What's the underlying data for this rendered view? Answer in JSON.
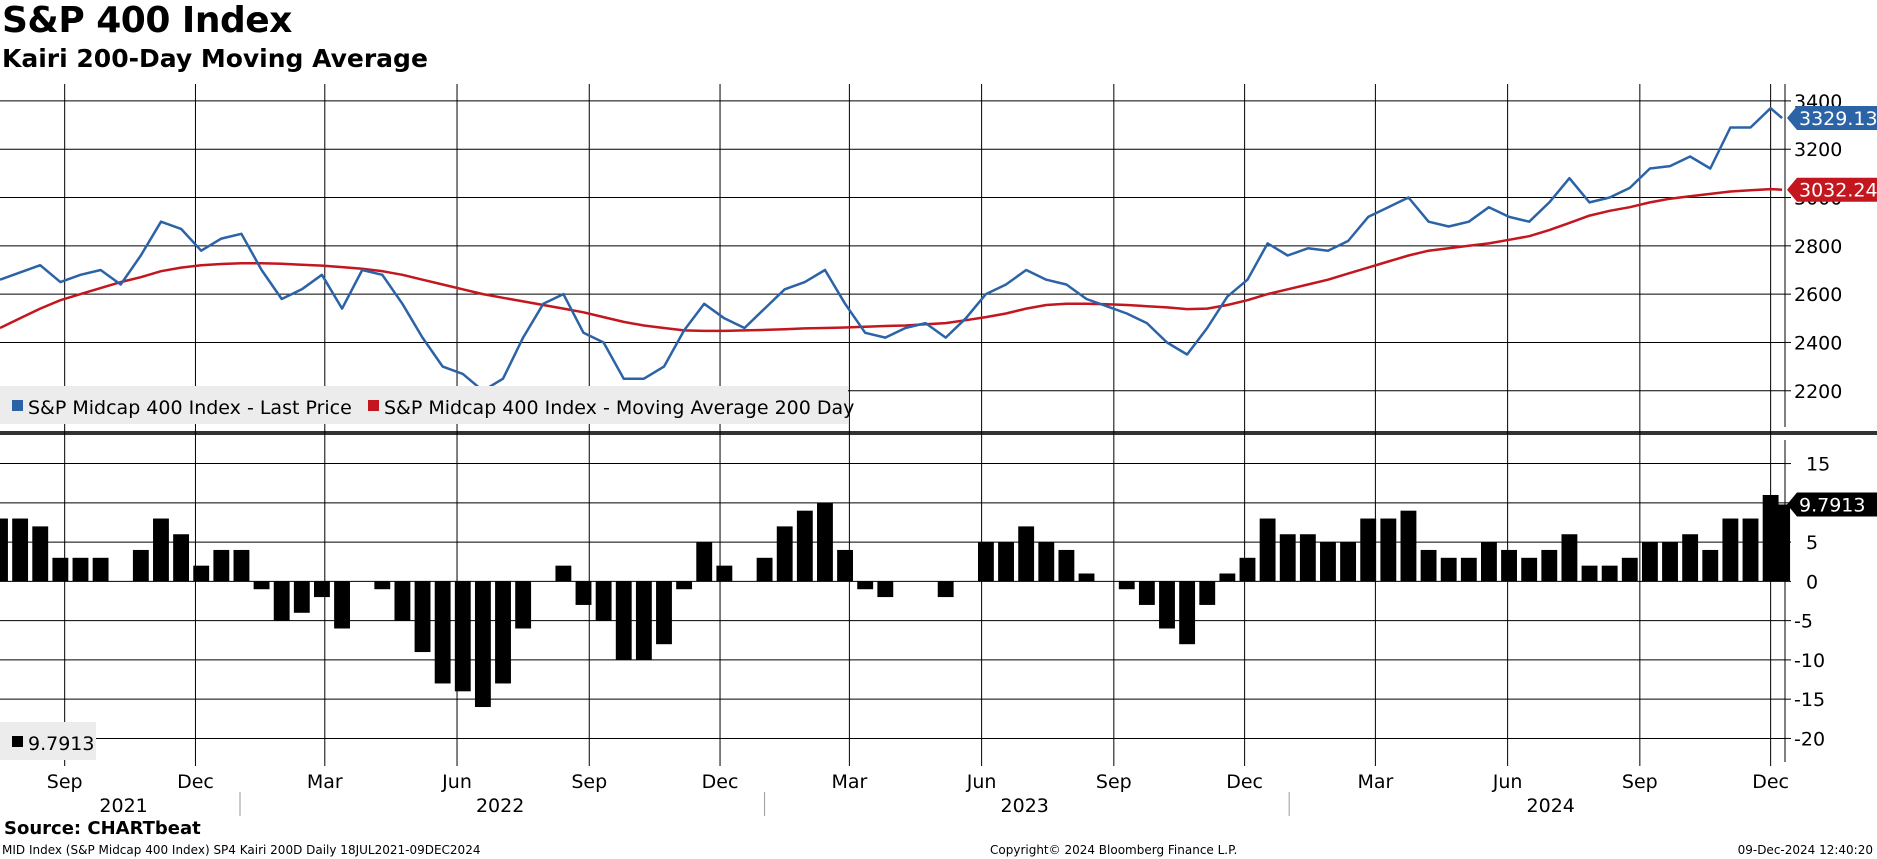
{
  "header": {
    "title": "S&P 400 Index",
    "subtitle": "Kairi 200-Day Moving Average"
  },
  "footer": {
    "source": "Source: CHARTbeat",
    "left_note": "MID Index (S&P Midcap 400 Index) SP4 Kairi 200D  Daily 18JUL2021-09DEC2024",
    "copyright": "Copyright© 2024 Bloomberg Finance L.P.",
    "timestamp": "09-Dec-2024 12:40:20"
  },
  "colors": {
    "price": "#2b63a6",
    "ma": "#c3161e",
    "kairi": "#000000",
    "grid": "#000000"
  },
  "chart_data": [
    {
      "type": "line",
      "panel": "upper",
      "ylim": [
        2050,
        3470
      ],
      "yticks": [
        2200,
        2400,
        2600,
        2800,
        3000,
        3200,
        3400
      ],
      "legend_position": "bottom-left",
      "legend": [
        "S&P Midcap 400 Index - Last Price",
        "S&P Midcap 400 Index - Moving Average 200 Day"
      ],
      "last_labels": {
        "price": "3329.13",
        "ma": "3032.24"
      },
      "x": [
        "2021-07-18",
        "2021-08-01",
        "2021-08-15",
        "2021-08-29",
        "2021-09-12",
        "2021-09-26",
        "2021-10-10",
        "2021-10-24",
        "2021-11-07",
        "2021-11-21",
        "2021-12-05",
        "2021-12-19",
        "2022-01-02",
        "2022-01-16",
        "2022-01-30",
        "2022-02-13",
        "2022-02-27",
        "2022-03-13",
        "2022-03-27",
        "2022-04-10",
        "2022-04-24",
        "2022-05-08",
        "2022-05-22",
        "2022-06-05",
        "2022-06-19",
        "2022-07-03",
        "2022-07-17",
        "2022-07-31",
        "2022-08-14",
        "2022-08-28",
        "2022-09-11",
        "2022-09-25",
        "2022-10-09",
        "2022-10-23",
        "2022-11-06",
        "2022-11-20",
        "2022-12-04",
        "2022-12-18",
        "2023-01-01",
        "2023-01-15",
        "2023-01-29",
        "2023-02-12",
        "2023-02-26",
        "2023-03-12",
        "2023-03-26",
        "2023-04-09",
        "2023-04-23",
        "2023-05-07",
        "2023-05-21",
        "2023-06-04",
        "2023-06-18",
        "2023-07-02",
        "2023-07-16",
        "2023-07-30",
        "2023-08-13",
        "2023-08-27",
        "2023-09-10",
        "2023-09-24",
        "2023-10-08",
        "2023-10-22",
        "2023-11-05",
        "2023-11-19",
        "2023-12-03",
        "2023-12-17",
        "2023-12-31",
        "2024-01-14",
        "2024-01-28",
        "2024-02-11",
        "2024-02-25",
        "2024-03-10",
        "2024-03-24",
        "2024-04-07",
        "2024-04-21",
        "2024-05-05",
        "2024-05-19",
        "2024-06-02",
        "2024-06-16",
        "2024-06-30",
        "2024-07-14",
        "2024-07-28",
        "2024-08-11",
        "2024-08-25",
        "2024-09-08",
        "2024-09-22",
        "2024-10-06",
        "2024-10-20",
        "2024-11-03",
        "2024-11-17",
        "2024-12-01",
        "2024-12-09"
      ],
      "series": [
        {
          "name": "S&P Midcap 400 Index - Last Price",
          "values": [
            2660,
            2690,
            2720,
            2650,
            2680,
            2700,
            2640,
            2760,
            2900,
            2870,
            2780,
            2830,
            2850,
            2700,
            2580,
            2620,
            2680,
            2540,
            2700,
            2680,
            2560,
            2420,
            2300,
            2270,
            2200,
            2250,
            2420,
            2560,
            2600,
            2440,
            2400,
            2250,
            2250,
            2300,
            2450,
            2560,
            2500,
            2460,
            2540,
            2620,
            2650,
            2700,
            2560,
            2440,
            2420,
            2460,
            2480,
            2420,
            2500,
            2600,
            2640,
            2700,
            2660,
            2640,
            2580,
            2550,
            2520,
            2480,
            2400,
            2350,
            2460,
            2590,
            2660,
            2810,
            2760,
            2790,
            2780,
            2820,
            2920,
            2960,
            3000,
            2900,
            2880,
            2900,
            2960,
            2920,
            2900,
            2980,
            3080,
            2980,
            3000,
            3040,
            3120,
            3130,
            3170,
            3120,
            3290,
            3290,
            3370,
            3329
          ]
        },
        {
          "name": "S&P Midcap 400 Index - Moving Average 200 Day",
          "values": [
            2460,
            2500,
            2540,
            2575,
            2600,
            2625,
            2650,
            2670,
            2695,
            2710,
            2720,
            2725,
            2728,
            2728,
            2726,
            2722,
            2718,
            2712,
            2705,
            2695,
            2680,
            2660,
            2640,
            2620,
            2600,
            2585,
            2570,
            2555,
            2540,
            2525,
            2505,
            2485,
            2470,
            2460,
            2450,
            2448,
            2448,
            2450,
            2452,
            2455,
            2458,
            2460,
            2462,
            2465,
            2468,
            2470,
            2475,
            2480,
            2492,
            2505,
            2520,
            2540,
            2555,
            2560,
            2560,
            2558,
            2555,
            2550,
            2545,
            2538,
            2540,
            2555,
            2575,
            2600,
            2620,
            2640,
            2660,
            2685,
            2710,
            2735,
            2760,
            2780,
            2790,
            2800,
            2810,
            2825,
            2840,
            2865,
            2895,
            2925,
            2945,
            2960,
            2980,
            2995,
            3005,
            3015,
            3025,
            3030,
            3035,
            3032.24
          ]
        }
      ]
    },
    {
      "type": "bar",
      "panel": "lower",
      "ylim": [
        -23,
        18
      ],
      "yticks": [
        -20,
        -15,
        -10,
        -5,
        0,
        5,
        10,
        15
      ],
      "legend_position": "bottom-left",
      "legend_value": "9.7913",
      "last_label": "9.7913",
      "x": [
        "2021-07-18",
        "2021-08-01",
        "2021-08-15",
        "2021-08-29",
        "2021-09-12",
        "2021-09-26",
        "2021-10-10",
        "2021-10-24",
        "2021-11-07",
        "2021-11-21",
        "2021-12-05",
        "2021-12-19",
        "2022-01-02",
        "2022-01-16",
        "2022-01-30",
        "2022-02-13",
        "2022-02-27",
        "2022-03-13",
        "2022-03-27",
        "2022-04-10",
        "2022-04-24",
        "2022-05-08",
        "2022-05-22",
        "2022-06-05",
        "2022-06-19",
        "2022-07-03",
        "2022-07-17",
        "2022-07-31",
        "2022-08-14",
        "2022-08-28",
        "2022-09-11",
        "2022-09-25",
        "2022-10-09",
        "2022-10-23",
        "2022-11-06",
        "2022-11-20",
        "2022-12-04",
        "2022-12-18",
        "2023-01-01",
        "2023-01-15",
        "2023-01-29",
        "2023-02-12",
        "2023-02-26",
        "2023-03-12",
        "2023-03-26",
        "2023-04-09",
        "2023-04-23",
        "2023-05-07",
        "2023-05-21",
        "2023-06-04",
        "2023-06-18",
        "2023-07-02",
        "2023-07-16",
        "2023-07-30",
        "2023-08-13",
        "2023-08-27",
        "2023-09-10",
        "2023-09-24",
        "2023-10-08",
        "2023-10-22",
        "2023-11-05",
        "2023-11-19",
        "2023-12-03",
        "2023-12-17",
        "2023-12-31",
        "2024-01-14",
        "2024-01-28",
        "2024-02-11",
        "2024-02-25",
        "2024-03-10",
        "2024-03-24",
        "2024-04-07",
        "2024-04-21",
        "2024-05-05",
        "2024-05-19",
        "2024-06-02",
        "2024-06-16",
        "2024-06-30",
        "2024-07-14",
        "2024-07-28",
        "2024-08-11",
        "2024-08-25",
        "2024-09-08",
        "2024-09-22",
        "2024-10-06",
        "2024-10-20",
        "2024-11-03",
        "2024-11-17",
        "2024-12-01",
        "2024-12-09"
      ],
      "series": [
        {
          "name": "SP4 Kairi 200D",
          "values": [
            8,
            8,
            7,
            3,
            3,
            3,
            0,
            4,
            8,
            6,
            2,
            4,
            4,
            -1,
            -5,
            -4,
            -2,
            -6,
            0,
            -1,
            -5,
            -9,
            -13,
            -14,
            -16,
            -13,
            -6,
            0,
            2,
            -3,
            -5,
            -10,
            -10,
            -8,
            -1,
            5,
            2,
            0,
            3,
            7,
            9,
            10,
            4,
            -1,
            -2,
            0,
            0,
            -2,
            0,
            5,
            5,
            7,
            5,
            4,
            1,
            0,
            -1,
            -3,
            -6,
            -8,
            -3,
            1,
            3,
            8,
            6,
            6,
            5,
            5,
            8,
            8,
            9,
            4,
            3,
            3,
            5,
            4,
            3,
            4,
            6,
            2,
            2,
            3,
            5,
            5,
            6,
            4,
            8,
            8,
            11,
            9.7913
          ]
        }
      ]
    }
  ],
  "axis": {
    "months": [
      {
        "label": "Sep",
        "date": "2021-09-01"
      },
      {
        "label": "Dec",
        "date": "2021-12-01"
      },
      {
        "label": "Mar",
        "date": "2022-03-01"
      },
      {
        "label": "Jun",
        "date": "2022-06-01"
      },
      {
        "label": "Sep",
        "date": "2022-09-01"
      },
      {
        "label": "Dec",
        "date": "2022-12-01"
      },
      {
        "label": "Mar",
        "date": "2023-03-01"
      },
      {
        "label": "Jun",
        "date": "2023-06-01"
      },
      {
        "label": "Sep",
        "date": "2023-09-01"
      },
      {
        "label": "Dec",
        "date": "2023-12-01"
      },
      {
        "label": "Mar",
        "date": "2024-03-01"
      },
      {
        "label": "Jun",
        "date": "2024-06-01"
      },
      {
        "label": "Sep",
        "date": "2024-09-01"
      },
      {
        "label": "Dec",
        "date": "2024-12-01"
      }
    ],
    "years": [
      {
        "label": "2021",
        "date": "2021-10-12"
      },
      {
        "label": "2022",
        "date": "2022-07-01"
      },
      {
        "label": "2023",
        "date": "2023-07-01"
      },
      {
        "label": "2024",
        "date": "2024-07-01"
      }
    ],
    "year_dividers": [
      "2022-01-01",
      "2023-01-01",
      "2024-01-01"
    ]
  }
}
